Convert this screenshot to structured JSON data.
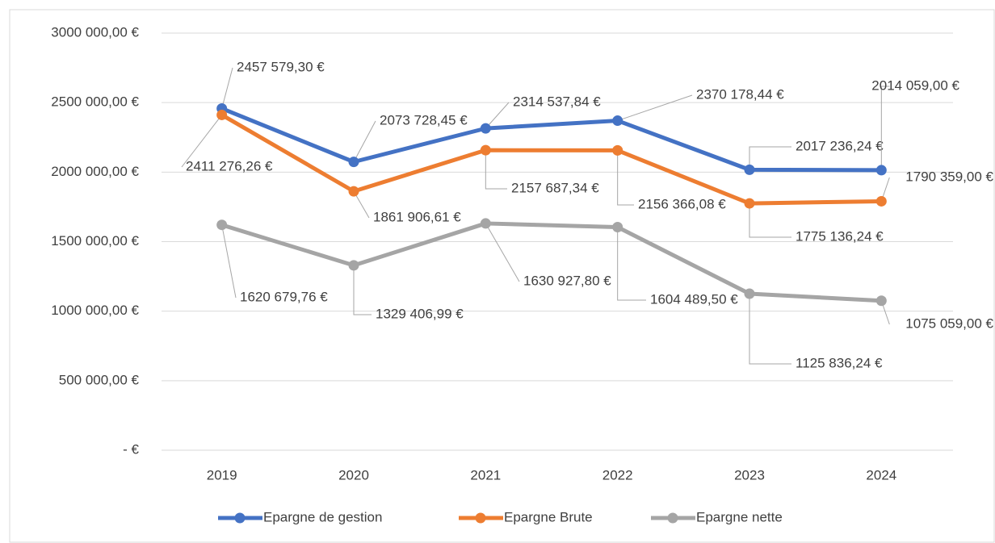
{
  "chart_data": {
    "type": "line",
    "categories": [
      "2019",
      "2020",
      "2021",
      "2022",
      "2023",
      "2024"
    ],
    "series": [
      {
        "name": "Epargne de gestion",
        "color": "#4472c4",
        "values": [
          2457579.3,
          2073728.45,
          2314537.84,
          2370178.44,
          2017236.24,
          2014059.0
        ],
        "value_labels": [
          "2457 579,30 €",
          "2073 728,45 €",
          "2314 537,84 €",
          "2370 178,44 €",
          "2017 236,24 €",
          "2014 059,00 €"
        ]
      },
      {
        "name": "Epargne Brute",
        "color": "#ed7d31",
        "values": [
          2411276.26,
          1861906.61,
          2157687.34,
          2156366.08,
          1775136.24,
          1790359.0
        ],
        "value_labels": [
          "2411 276,26 €",
          "1861 906,61 €",
          "2157 687,34 €",
          "2156 366,08 €",
          "1775 136,24 €",
          "1790 359,00 €"
        ]
      },
      {
        "name": "Epargne nette",
        "color": "#a5a5a5",
        "values": [
          1620679.76,
          1329406.99,
          1630927.8,
          1604489.5,
          1125836.24,
          1075059.0
        ],
        "value_labels": [
          "1620 679,76 €",
          "1329 406,99 €",
          "1630 927,80 €",
          "1604 489,50 €",
          "1125 836,24 €",
          "1075 059,00 €"
        ]
      }
    ],
    "ylim": [
      0,
      3000000
    ],
    "yticks": [
      {
        "value": 0,
        "label": "-  €"
      },
      {
        "value": 500000,
        "label": "500 000,00 €"
      },
      {
        "value": 1000000,
        "label": "1000 000,00 €"
      },
      {
        "value": 1500000,
        "label": "1500 000,00 €"
      },
      {
        "value": 2000000,
        "label": "2000 000,00 €"
      },
      {
        "value": 2500000,
        "label": "2500 000,00 €"
      },
      {
        "value": 3000000,
        "label": "3000 000,00 €"
      }
    ],
    "grid": true,
    "legend": "bottom"
  }
}
